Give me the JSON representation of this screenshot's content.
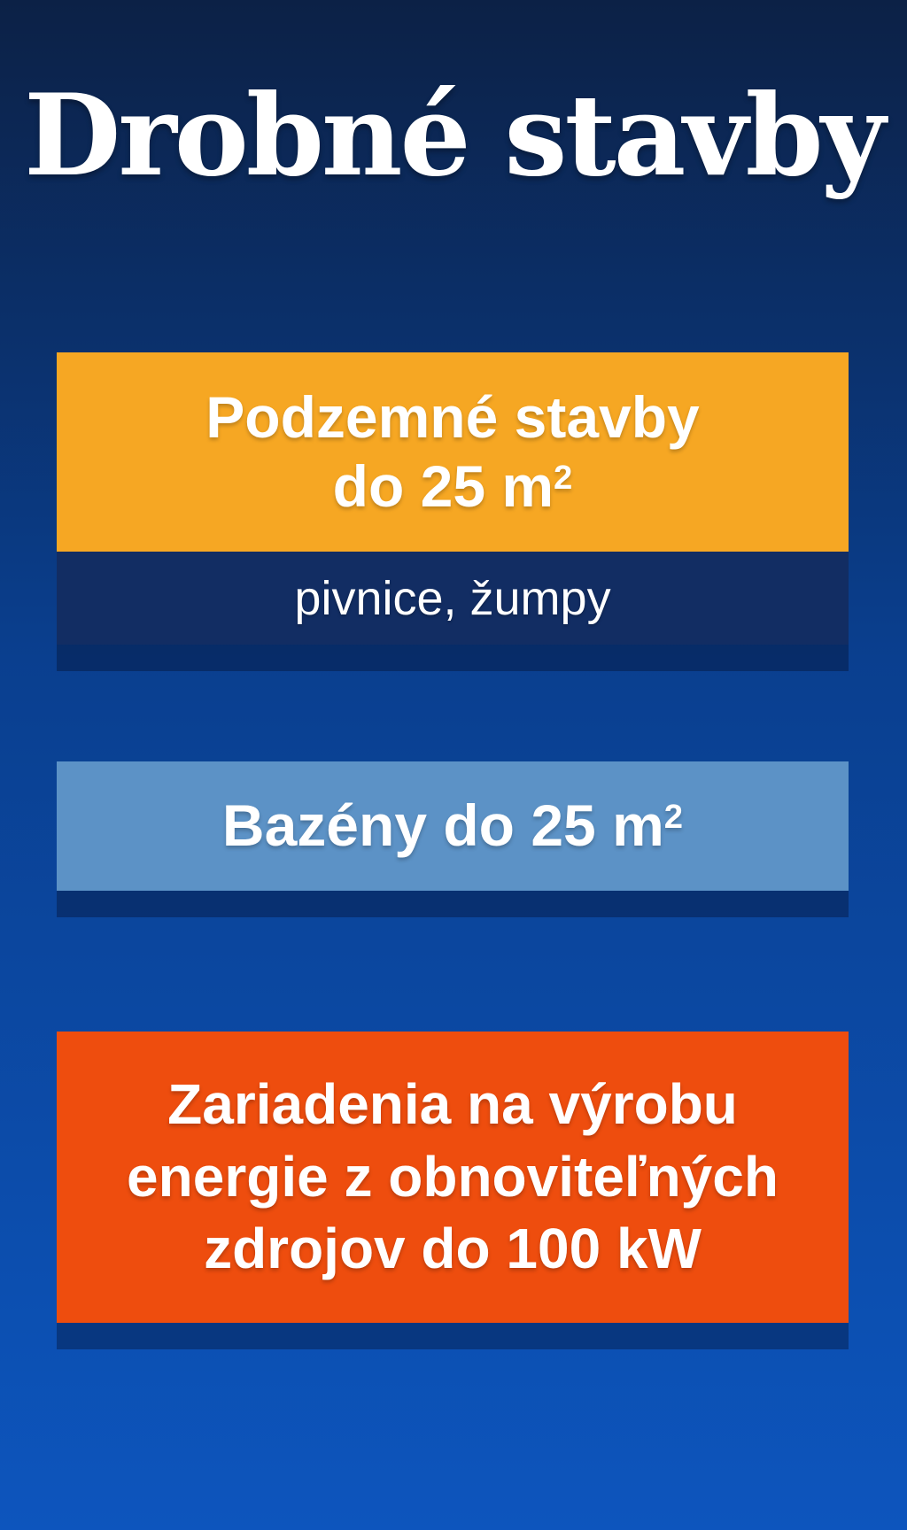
{
  "title": "Drobné stavby",
  "colors": {
    "background_top": "#0c2146",
    "background_middle": "#0a3f8f",
    "background_bottom": "#0d55bd",
    "card_podzemne_bg": "#f6a723",
    "card_podzemne_subtitle_bg": "#122d63",
    "card_bazeny_bg": "#5c92c6",
    "card_zariadenia_bg": "#ee4d0e",
    "text": "#ffffff"
  },
  "cards": [
    {
      "name": "podzemne-stavby",
      "line1": "Podzemné stavby",
      "line2": "do 25 m",
      "line2_sup": "2",
      "subtitle": "pivnice, žumpy"
    },
    {
      "name": "bazeny",
      "line1": "Bazény do 25 m",
      "line1_sup": "2"
    },
    {
      "name": "zariadenia-na-vyrobu-energie",
      "line1": "Zariadenia na výrobu",
      "line2": "energie z obnoviteľných",
      "line3": "zdrojov do 100 kW"
    }
  ]
}
